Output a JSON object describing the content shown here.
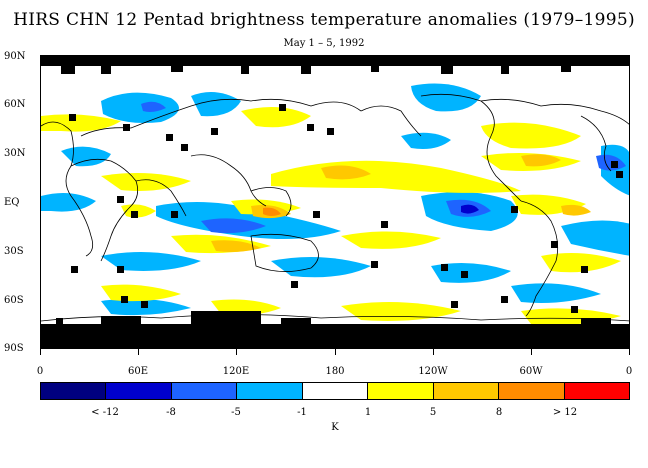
{
  "title": "HIRS CHN 12 Pentad brightness temperature anomalies (1979–1995)",
  "subtitle": "May 1 – 5, 1992",
  "y_axis_labels": [
    "90N",
    "60N",
    "30N",
    "EQ",
    "30S",
    "60S",
    "90S"
  ],
  "x_axis_labels": [
    "0",
    "60E",
    "120E",
    "180",
    "120W",
    "60W",
    "0"
  ],
  "colorbar": {
    "colors": [
      "#000080",
      "#0000cd",
      "#1e64ff",
      "#00b4ff",
      "#ffffff",
      "#ffff00",
      "#ffc800",
      "#ff8c00",
      "#ff0000"
    ],
    "labels": [
      "< -12",
      "-8",
      "-5",
      "-1",
      "1",
      "5",
      "8",
      "> 12"
    ],
    "unit": "K"
  },
  "map_colors": {
    "cold_light": "#00b4ff",
    "cold_mid": "#1e64ff",
    "cold_deep": "#0000cd",
    "warm_light": "#ffff00",
    "warm_mid": "#ffc800",
    "warm_deep": "#ff8c00",
    "missing": "#000000"
  }
}
